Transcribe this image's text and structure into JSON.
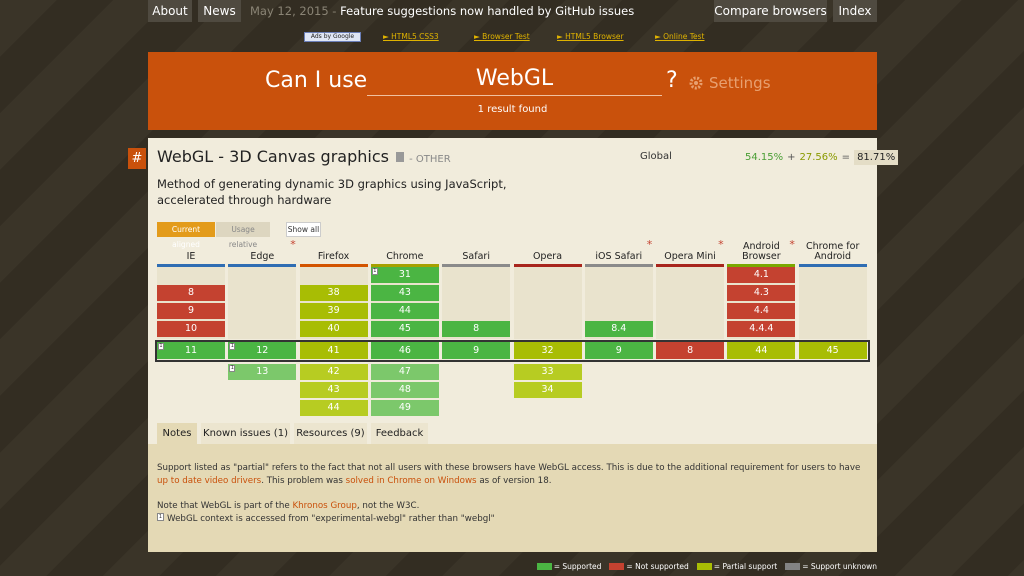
{
  "nav": {
    "left": [
      "About",
      "News"
    ],
    "date": "May 12, 2015 -",
    "headline": "Feature suggestions now handled by GitHub issues",
    "right": [
      "Compare browsers",
      "Index"
    ]
  },
  "ads": {
    "badge": "Ads by Google",
    "links": [
      "► HTML5 CSS3",
      "► Browser Test",
      "► HTML5 Browser",
      "► Online Test"
    ]
  },
  "search": {
    "label": "Can I use",
    "query": "WebGL",
    "help": "?",
    "settings": "Settings",
    "result": "1 result found"
  },
  "feature": {
    "anchor": "#",
    "title": "WebGL - 3D Canvas graphics",
    "category": "- OTHER",
    "scope": "Global",
    "supported": "54.15%",
    "plus": "+",
    "partial": "27.56%",
    "equals": "=",
    "total": "81.71%",
    "description": [
      "Method of generating dynamic 3D graphics using JavaScript,",
      "accelerated through hardware"
    ],
    "buttons": [
      "Current aligned",
      "Usage relative",
      "Show all"
    ]
  },
  "browsers": [
    {
      "name": "IE",
      "color": "#2f6db3",
      "cells": [
        null,
        {
          "version": "8",
          "color": "#c44230"
        },
        {
          "version": "9",
          "color": "#c44230"
        },
        {
          "version": "10",
          "color": "#c44230"
        },
        {
          "version": "11",
          "color": "#4bb543",
          "note": "1"
        },
        null,
        null,
        null
      ]
    },
    {
      "name": "Edge",
      "color": "#2f6db3",
      "mark": "*",
      "cells": [
        null,
        null,
        null,
        null,
        {
          "version": "12",
          "color": "#4bb543",
          "note": "1"
        },
        {
          "version": "13",
          "color": "#7cc86b",
          "note": "1"
        },
        null,
        null
      ]
    },
    {
      "name": "Firefox",
      "color": "#d35400",
      "cells": [
        null,
        {
          "version": "38",
          "color": "#a8bd04"
        },
        {
          "version": "39",
          "color": "#a8bd04"
        },
        {
          "version": "40",
          "color": "#a8bd04"
        },
        {
          "version": "41",
          "color": "#a8bd04"
        },
        {
          "version": "42",
          "color": "#b7cc22"
        },
        {
          "version": "43",
          "color": "#b7cc22"
        },
        {
          "version": "44",
          "color": "#b7cc22"
        }
      ]
    },
    {
      "name": "Chrome",
      "color": "#a6a000",
      "cells": [
        {
          "version": "31",
          "color": "#4bb543",
          "note": "1"
        },
        {
          "version": "43",
          "color": "#4bb543"
        },
        {
          "version": "44",
          "color": "#4bb543"
        },
        {
          "version": "45",
          "color": "#4bb543"
        },
        {
          "version": "46",
          "color": "#4bb543"
        },
        {
          "version": "47",
          "color": "#7cc86b"
        },
        {
          "version": "48",
          "color": "#7cc86b"
        },
        {
          "version": "49",
          "color": "#7cc86b"
        }
      ]
    },
    {
      "name": "Safari",
      "color": "#8a8a8a",
      "cells": [
        null,
        null,
        null,
        {
          "version": "8",
          "color": "#4bb543"
        },
        {
          "version": "9",
          "color": "#4bb543"
        },
        null,
        null,
        null
      ]
    },
    {
      "name": "Opera",
      "color": "#a8251c",
      "cells": [
        null,
        null,
        null,
        null,
        {
          "version": "32",
          "color": "#a8bd04"
        },
        {
          "version": "33",
          "color": "#b7cc22"
        },
        {
          "version": "34",
          "color": "#b7cc22"
        },
        null
      ]
    },
    {
      "name": "iOS Safari",
      "color": "#8a8a8a",
      "mark": "*",
      "cells": [
        null,
        null,
        null,
        {
          "version": "8.4",
          "color": "#4bb543"
        },
        {
          "version": "9",
          "color": "#4bb543"
        },
        null,
        null,
        null
      ]
    },
    {
      "name": "Opera Mini",
      "color": "#a8251c",
      "mark": "*",
      "cells": [
        null,
        null,
        null,
        null,
        {
          "version": "8",
          "color": "#c44230"
        },
        null,
        null,
        null
      ]
    },
    {
      "name": "Android Browser",
      "color": "#7aa800",
      "mark": "*",
      "cells": [
        {
          "version": "4.1",
          "color": "#c44230"
        },
        {
          "version": "4.3",
          "color": "#c44230"
        },
        {
          "version": "4.4",
          "color": "#c44230"
        },
        {
          "version": "4.4.4",
          "color": "#c44230"
        },
        {
          "version": "44",
          "color": "#a8bd04"
        },
        null,
        null,
        null
      ]
    },
    {
      "name": "Chrome for Android",
      "color": "#2f6db3",
      "cells": [
        null,
        null,
        null,
        null,
        {
          "version": "45",
          "color": "#a8bd04"
        },
        null,
        null,
        null
      ]
    }
  ],
  "tabs": [
    "Notes",
    "Known issues (1)",
    "Resources (9)",
    "Feedback"
  ],
  "notes": [
    [
      {
        "text": "Support listed as \"partial\" refers to the fact that not all users with these browsers have WebGL access. This is due to the additional requirement for users to have "
      },
      {
        "text": "up to date video drivers",
        "link": true
      },
      {
        "text": ". This problem was "
      },
      {
        "text": "solved in Chrome on Windows",
        "link": true
      },
      {
        "text": " as of version 18."
      }
    ],
    [
      {
        "text": "Note that WebGL is part of the "
      },
      {
        "text": "Khronos Group",
        "link": true
      },
      {
        "text": ", not the W3C."
      }
    ],
    [
      {
        "text": "1",
        "note": true
      },
      {
        "text": "WebGL context is accessed from \"experimental-webgl\" rather than \"webgl\""
      }
    ]
  ],
  "legend": [
    {
      "color": "#4bb543",
      "label": "= Supported"
    },
    {
      "color": "#c44230",
      "label": "= Not supported"
    },
    {
      "color": "#a8bd04",
      "label": "= Partial support"
    },
    {
      "color": "#838383",
      "label": "= Support unknown"
    }
  ]
}
